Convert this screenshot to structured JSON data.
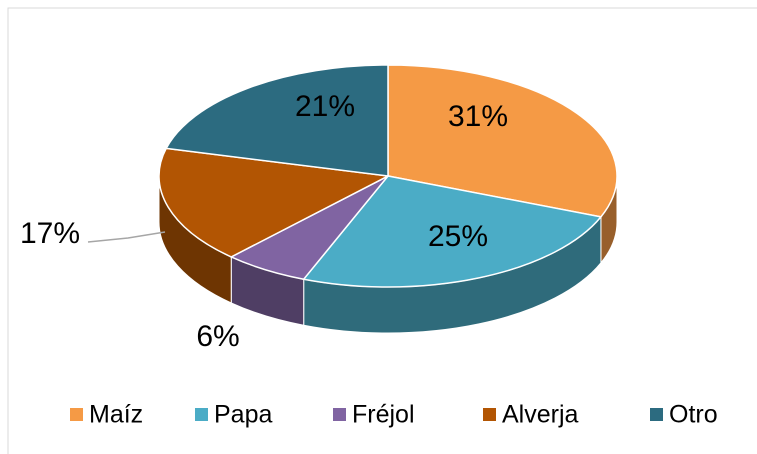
{
  "chart_data": {
    "type": "pie",
    "categories": [
      "Maíz",
      "Papa",
      "Fréjol",
      "Alverja",
      "Otro"
    ],
    "values": [
      31,
      25,
      6,
      17,
      21
    ],
    "value_labels": [
      "31%",
      "25%",
      "6%",
      "17%",
      "21%"
    ],
    "colors": [
      "#f59a45",
      "#4bacc6",
      "#8064a2",
      "#b25503",
      "#2c6b80"
    ],
    "legend": "bottom"
  }
}
